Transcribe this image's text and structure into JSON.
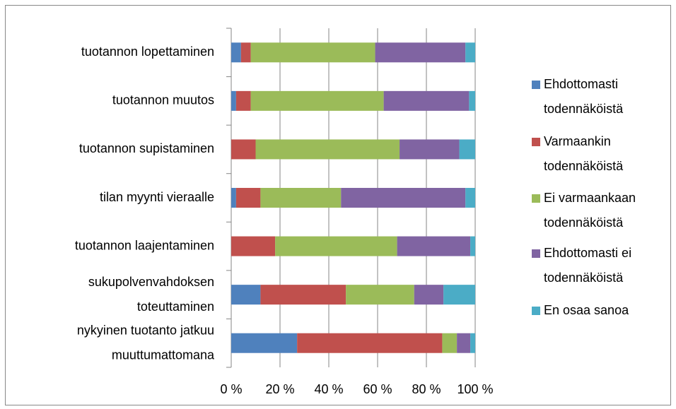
{
  "chart_data": {
    "type": "stacked_barh",
    "categories": [
      "tuotannon lopettaminen",
      "tuotannon muutos",
      "tuotannon supistaminen",
      "tilan myynti vieraalle",
      "tuotannon laajentaminen",
      "sukupolvenvahdoksen toteuttaminen",
      "nykyinen tuotanto jatkuu muuttumattomana"
    ],
    "series": [
      {
        "name": "Ehdottomasti todennäköistä",
        "color": "#4f81bd",
        "values": [
          4,
          2,
          0,
          2,
          0,
          12,
          27
        ]
      },
      {
        "name": "Varmaankin todennäköistä",
        "color": "#c0504d",
        "values": [
          4,
          6,
          10,
          10,
          18,
          35,
          59.5
        ]
      },
      {
        "name": "Ei varmaankaan todennäköistä",
        "color": "#9bbb59",
        "values": [
          51,
          54.5,
          59,
          33,
          50,
          28,
          6
        ]
      },
      {
        "name": "Ehdottomasti ei todennäköistä",
        "color": "#8064a2",
        "values": [
          37,
          35,
          24.5,
          51,
          30,
          12,
          5.5
        ]
      },
      {
        "name": "En osaa sanoa",
        "color": "#4bacc6",
        "values": [
          4,
          2.5,
          6.5,
          4,
          2,
          13,
          2
        ]
      }
    ],
    "xlim": [
      0,
      100
    ],
    "xticks": [
      {
        "value": 0,
        "label": "0 %"
      },
      {
        "value": 20,
        "label": "20 %"
      },
      {
        "value": 40,
        "label": "40 %"
      },
      {
        "value": 60,
        "label": "60 %"
      },
      {
        "value": 80,
        "label": "80 %"
      },
      {
        "value": 100,
        "label": "100 %"
      }
    ],
    "grid": true,
    "legend": "right"
  }
}
